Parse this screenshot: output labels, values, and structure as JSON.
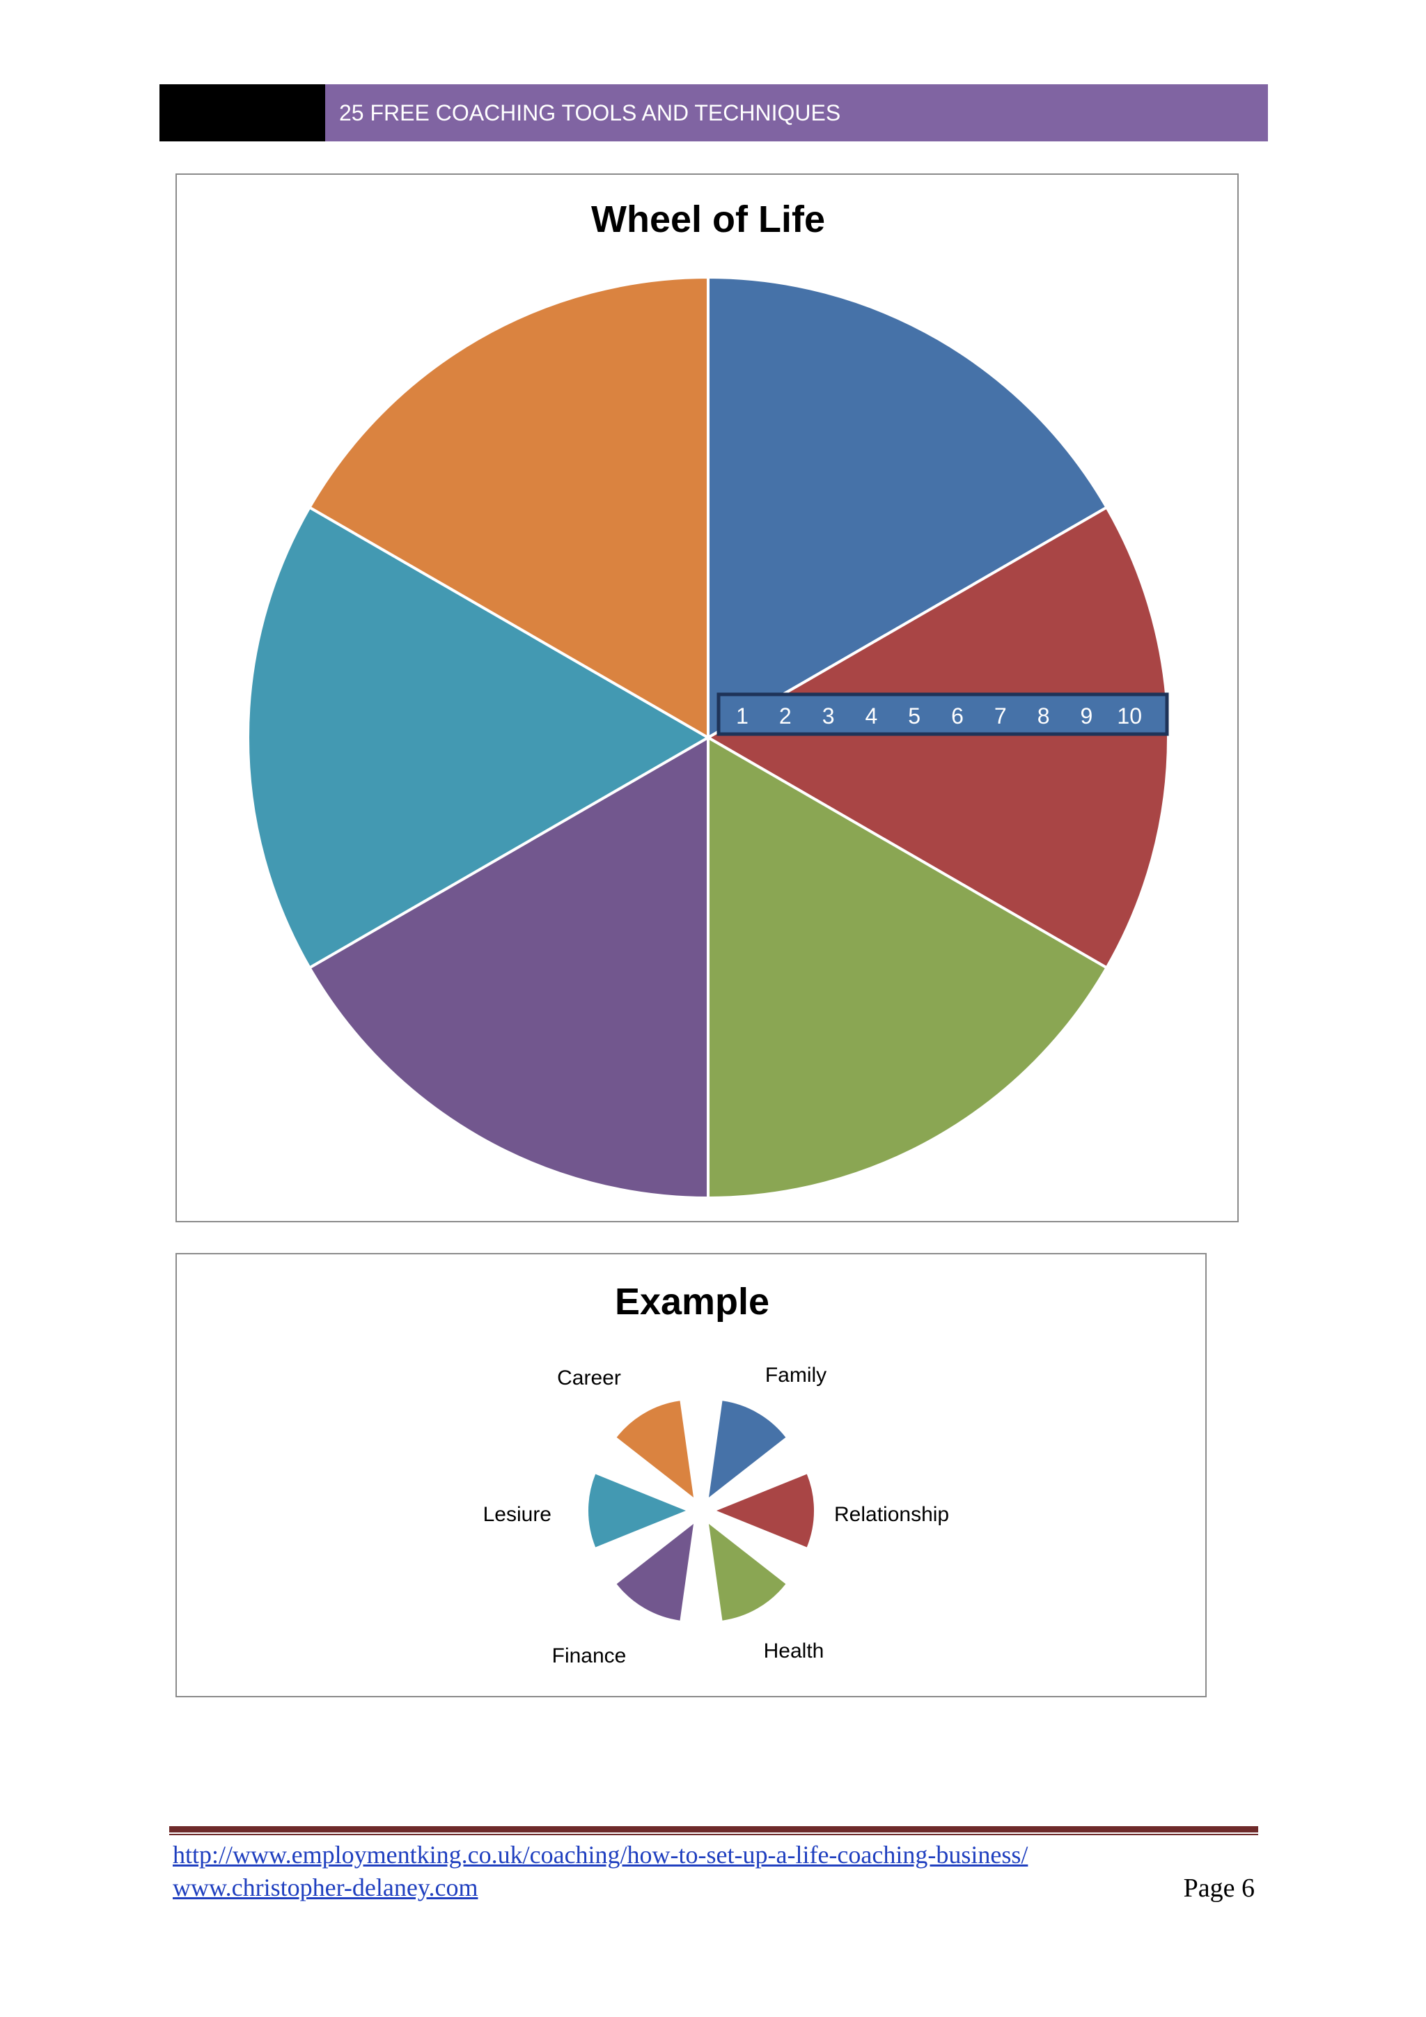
{
  "header": {
    "title": "25 FREE COACHING TOOLS AND TECHNIQUES"
  },
  "chart_data": [
    {
      "type": "pie",
      "title": "Wheel of Life",
      "slices": [
        {
          "value": 1,
          "color": "#4672a8"
        },
        {
          "value": 1,
          "color": "#a94545"
        },
        {
          "value": 1,
          "color": "#8aa653"
        },
        {
          "value": 1,
          "color": "#72578e"
        },
        {
          "value": 1,
          "color": "#4399b2"
        },
        {
          "value": 1,
          "color": "#da8340"
        }
      ],
      "scale": [
        "1",
        "2",
        "3",
        "4",
        "5",
        "6",
        "7",
        "8",
        "9",
        "10"
      ]
    },
    {
      "type": "pie",
      "title": "Example",
      "slices": [
        {
          "label": "Family",
          "value": 1,
          "color": "#4672a8"
        },
        {
          "label": "Relationship",
          "value": 1,
          "color": "#a94545"
        },
        {
          "label": "Health",
          "value": 1,
          "color": "#8aa653"
        },
        {
          "label": "Finance",
          "value": 1,
          "color": "#72578e"
        },
        {
          "label": "Lesiure",
          "value": 1,
          "color": "#4399b2"
        },
        {
          "label": "Career",
          "value": 1,
          "color": "#da8340"
        }
      ]
    }
  ],
  "footer": {
    "link1": "http://www.employmentking.co.uk/coaching/how-to-set-up-a-life-coaching-business/",
    "link2": "www.christopher-delaney.com",
    "page": "Page 6"
  }
}
